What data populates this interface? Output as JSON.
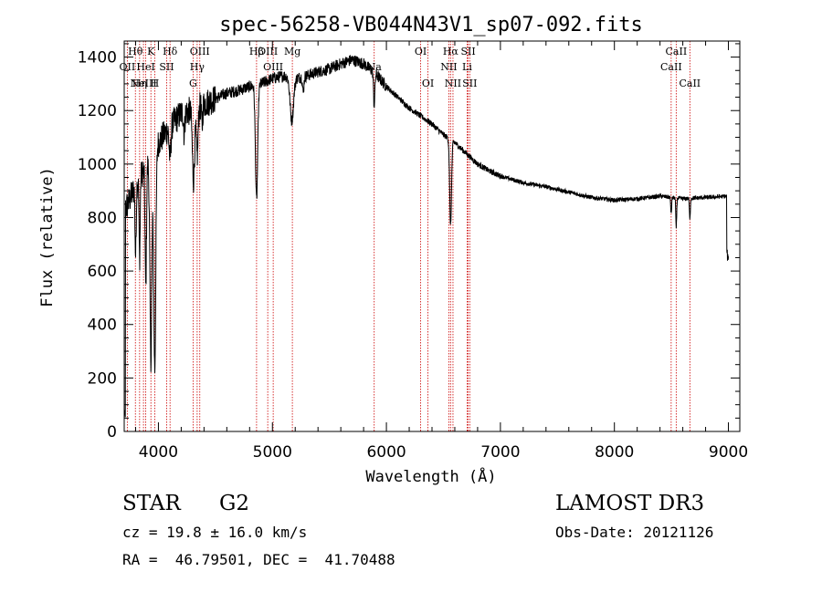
{
  "chart_data": {
    "type": "line",
    "title": "spec-56258-VB044N43V1_sp07-092.fits",
    "xlabel": "Wavelength (Å)",
    "ylabel": "Flux (relative)",
    "xlim": [
      3700,
      9100
    ],
    "ylim": [
      0,
      1460
    ],
    "x_ticks": [
      4000,
      5000,
      6000,
      7000,
      8000,
      9000
    ],
    "y_ticks": [
      0,
      200,
      400,
      600,
      800,
      1000,
      1200,
      1400
    ],
    "continuum": [
      [
        3700,
        820
      ],
      [
        3800,
        920
      ],
      [
        3900,
        1000
      ],
      [
        4000,
        1080
      ],
      [
        4100,
        1140
      ],
      [
        4200,
        1190
      ],
      [
        4300,
        1200
      ],
      [
        4400,
        1225
      ],
      [
        4500,
        1245
      ],
      [
        4600,
        1265
      ],
      [
        4700,
        1275
      ],
      [
        4800,
        1290
      ],
      [
        4900,
        1300
      ],
      [
        5000,
        1320
      ],
      [
        5100,
        1330
      ],
      [
        5200,
        1320
      ],
      [
        5300,
        1330
      ],
      [
        5400,
        1345
      ],
      [
        5500,
        1355
      ],
      [
        5600,
        1375
      ],
      [
        5700,
        1390
      ],
      [
        5800,
        1375
      ],
      [
        5900,
        1340
      ],
      [
        6000,
        1290
      ],
      [
        6100,
        1250
      ],
      [
        6200,
        1210
      ],
      [
        6300,
        1180
      ],
      [
        6400,
        1150
      ],
      [
        6500,
        1110
      ],
      [
        6600,
        1080
      ],
      [
        6700,
        1040
      ],
      [
        6800,
        1000
      ],
      [
        6900,
        975
      ],
      [
        7000,
        955
      ],
      [
        7200,
        930
      ],
      [
        7400,
        915
      ],
      [
        7600,
        895
      ],
      [
        7800,
        875
      ],
      [
        8000,
        865
      ],
      [
        8200,
        870
      ],
      [
        8400,
        880
      ],
      [
        8600,
        870
      ],
      [
        8800,
        875
      ],
      [
        9000,
        880
      ]
    ],
    "absorption_features": [
      [
        3800,
        260,
        5
      ],
      [
        3835,
        300,
        5
      ],
      [
        3889,
        450,
        6
      ],
      [
        3934,
        750,
        9
      ],
      [
        3968,
        820,
        9
      ],
      [
        4102,
        120,
        8
      ],
      [
        4226,
        80,
        5
      ],
      [
        4308,
        260,
        10
      ],
      [
        4340,
        180,
        8
      ],
      [
        4383,
        80,
        5
      ],
      [
        4861,
        430,
        10
      ],
      [
        5170,
        160,
        15
      ],
      [
        5270,
        60,
        6
      ],
      [
        5893,
        120,
        6
      ],
      [
        6563,
        320,
        8
      ],
      [
        8498,
        60,
        4
      ],
      [
        8542,
        110,
        4
      ],
      [
        8662,
        80,
        4
      ]
    ],
    "emission_lines": [
      {
        "wavelength": 3727,
        "label": "OII",
        "row": 1
      },
      {
        "wavelength": 3798,
        "label": "Hθ",
        "row": 0
      },
      {
        "wavelength": 3835,
        "label": "Hη",
        "row": 2
      },
      {
        "wavelength": 3869,
        "label": "NeIII",
        "row": 2
      },
      {
        "wavelength": 3889,
        "label": "HeI",
        "row": 1
      },
      {
        "wavelength": 3934,
        "label": "K",
        "row": 0
      },
      {
        "wavelength": 3968,
        "label": "H",
        "row": 2
      },
      {
        "wavelength": 4072,
        "label": "SII",
        "row": 1
      },
      {
        "wavelength": 4102,
        "label": "Hδ",
        "row": 0
      },
      {
        "wavelength": 4304,
        "label": "G",
        "row": 2
      },
      {
        "wavelength": 4340,
        "label": "Hγ",
        "row": 1
      },
      {
        "wavelength": 4363,
        "label": "OIII",
        "row": 0
      },
      {
        "wavelength": 4861,
        "label": "Hβ",
        "row": 0
      },
      {
        "wavelength": 4959,
        "label": "OIII",
        "row": 0
      },
      {
        "wavelength": 5007,
        "label": "OIII",
        "row": 1
      },
      {
        "wavelength": 5175,
        "label": "Mg",
        "row": 0
      },
      {
        "wavelength": 5893,
        "label": "Na",
        "row": 1
      },
      {
        "wavelength": 6300,
        "label": "OI",
        "row": 0
      },
      {
        "wavelength": 6364,
        "label": "OI",
        "row": 2
      },
      {
        "wavelength": 6548,
        "label": "NII",
        "row": 1
      },
      {
        "wavelength": 6563,
        "label": "Hα",
        "row": 0
      },
      {
        "wavelength": 6584,
        "label": "NII",
        "row": 2
      },
      {
        "wavelength": 6708,
        "label": "Li",
        "row": 1
      },
      {
        "wavelength": 6717,
        "label": "SII",
        "row": 0
      },
      {
        "wavelength": 6731,
        "label": "SII",
        "row": 2
      },
      {
        "wavelength": 8498,
        "label": "CaII",
        "row": 1
      },
      {
        "wavelength": 8542,
        "label": "CaII",
        "row": 0
      },
      {
        "wavelength": 8662,
        "label": "CaII",
        "row": 2
      }
    ]
  },
  "info": {
    "class": "STAR",
    "subclass": "G2",
    "survey": "LAMOST DR3",
    "cz": "cz = 19.8 ± 16.0 km/s",
    "obs_date": "Obs-Date: 20121126",
    "coords": "RA =  46.79501, DEC =  41.70488"
  },
  "colors": {
    "spectrum": "#000000",
    "line_marker": "#cc0000",
    "axes": "#000000"
  }
}
